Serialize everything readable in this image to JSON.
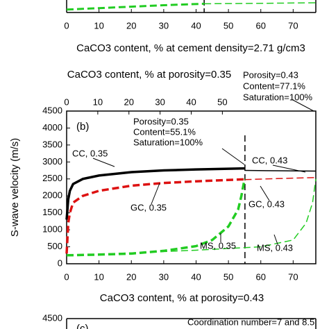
{
  "chart_data": [
    {
      "type": "line",
      "xlabel": "CaCO3 content, % at cement density=2.71 g/cm3",
      "xlim": [
        0,
        77
      ],
      "xticks": [
        0,
        10,
        20,
        30,
        40,
        50,
        60,
        70
      ],
      "vlines": [
        42.5
      ],
      "series": [
        {
          "name": null,
          "color": "#22cc22",
          "dash": true,
          "linewidth": 3,
          "x": [
            0,
            10,
            20,
            30,
            42.5
          ],
          "values": [
            0.3,
            0.45,
            0.6,
            0.75,
            0.9
          ]
        },
        {
          "name": null,
          "color": "#22cc22",
          "dash": true,
          "linewidth": 1.5,
          "x": [
            42.5,
            55,
            65,
            77
          ],
          "values": [
            0.9,
            0.93,
            0.96,
            1
          ]
        }
      ]
    },
    {
      "type": "line",
      "panel": "(b)",
      "ylabel": "S-wave velocity (m/s)",
      "x2label": "CaCO3 content, % at porosity=0.35",
      "x2lim": [
        0,
        80
      ],
      "x2ticks": [
        0,
        10,
        20,
        30,
        40,
        50
      ],
      "xlabel": "CaCO3 content, % at porosity=0.43",
      "xlim": [
        0,
        77
      ],
      "xticks": [
        0,
        10,
        20,
        30,
        40,
        50,
        60,
        70
      ],
      "ylim": [
        0,
        4500
      ],
      "yticks": [
        0,
        500,
        1000,
        1500,
        2000,
        2500,
        3000,
        3500,
        4000,
        4500
      ],
      "vlines": [
        55.1
      ],
      "annotations": [
        "Porosity=0.35",
        "Content=55.1%",
        "Saturation=100%",
        "Porosity=0.43",
        "Content=77.1%",
        "Saturation=100%"
      ],
      "series": [
        {
          "name": "CC, 0.35",
          "color": "#000000",
          "dash": false,
          "linewidth": 3.5,
          "x": [
            0,
            0.5,
            1,
            2,
            5,
            10,
            20,
            30,
            40,
            50,
            55
          ],
          "values": [
            1300,
            1900,
            2150,
            2350,
            2500,
            2600,
            2700,
            2750,
            2780,
            2800,
            2810
          ]
        },
        {
          "name": "CC, 0.43",
          "color": "#000000",
          "dash": false,
          "linewidth": 1.5,
          "x": [
            55,
            65,
            77
          ],
          "values": [
            2750,
            2740,
            2730
          ]
        },
        {
          "name": "GC, 0.35",
          "color": "#dd1111",
          "dash": true,
          "linewidth": 3.5,
          "x": [
            0,
            0.5,
            1,
            2,
            5,
            10,
            20,
            30,
            40,
            50,
            55
          ],
          "values": [
            300,
            1200,
            1500,
            1800,
            2000,
            2150,
            2300,
            2380,
            2430,
            2470,
            2490
          ]
        },
        {
          "name": "GC, 0.43",
          "color": "#dd1111",
          "dash": true,
          "linewidth": 1.5,
          "x": [
            55,
            65,
            77
          ],
          "values": [
            2480,
            2510,
            2540
          ]
        },
        {
          "name": "MS, 0.35",
          "color": "#22cc22",
          "dash": true,
          "linewidth": 3.5,
          "x": [
            0,
            10,
            20,
            30,
            40,
            45,
            50,
            53,
            54,
            55
          ],
          "values": [
            250,
            270,
            300,
            380,
            520,
            700,
            1100,
            1600,
            2000,
            2500
          ]
        },
        {
          "name": "MS, 0.43",
          "color": "#22cc22",
          "dash": true,
          "linewidth": 1.5,
          "x": [
            0,
            20,
            40,
            60,
            70,
            74,
            76,
            77
          ],
          "values": [
            250,
            320,
            400,
            500,
            700,
            1200,
            1800,
            2500
          ]
        }
      ]
    },
    {
      "type": "line",
      "panel": "(c)",
      "yticks": [
        4500
      ],
      "annotations": [
        "Coordination number=7 and 8.5"
      ]
    }
  ]
}
